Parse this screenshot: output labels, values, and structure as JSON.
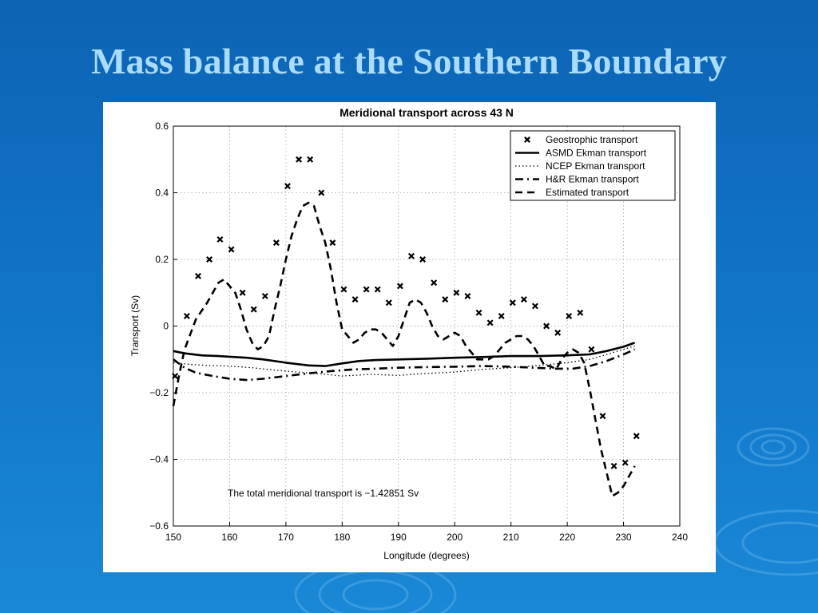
{
  "slide": {
    "title": "Mass balance at the Southern Boundary"
  },
  "colors": {
    "background_top": "#0d63b4",
    "background_bottom": "#1a88d6",
    "title": "#a9dcff",
    "plot": "#000000"
  },
  "chart_data": {
    "type": "line",
    "title": "Meridional transport across 43 N",
    "xlabel": "Longitude (degrees)",
    "ylabel": "Transport (Sv)",
    "xlim": [
      150,
      240
    ],
    "ylim": [
      -0.6,
      0.6
    ],
    "xticks": [
      150,
      160,
      170,
      180,
      190,
      200,
      210,
      220,
      230,
      240
    ],
    "yticks": [
      0.6,
      0.4,
      0.2,
      0,
      -0.2,
      -0.4,
      -0.6
    ],
    "xtick_labels": [
      "150",
      "160",
      "170",
      "180",
      "190",
      "200",
      "210",
      "220",
      "230",
      "240"
    ],
    "ytick_labels": [
      "0.6",
      "0.4",
      "0.2",
      "0",
      "−0.2",
      "−0.4",
      "−0.6"
    ],
    "grid": true,
    "legend_position": "top-right",
    "annotation": "The total meridional transport is −1.42851 Sv",
    "series": [
      {
        "name": "Geostrophic transport",
        "style": "markers-x",
        "x": [
          150.3,
          152.4,
          154.4,
          156.4,
          158.3,
          160.3,
          162.3,
          164.3,
          166.3,
          168.3,
          170.3,
          172.3,
          174.3,
          176.3,
          178.3,
          180.3,
          182.3,
          184.3,
          186.3,
          188.3,
          190.3,
          192.3,
          194.3,
          196.3,
          198.3,
          200.3,
          202.3,
          204.3,
          206.3,
          208.3,
          210.3,
          212.3,
          214.3,
          216.3,
          218.3,
          220.3,
          222.3,
          224.3,
          226.3,
          228.3,
          230.3,
          232.3
        ],
        "y": [
          -0.15,
          0.03,
          0.15,
          0.2,
          0.26,
          0.23,
          0.1,
          0.05,
          0.09,
          0.25,
          0.42,
          0.5,
          0.5,
          0.4,
          0.25,
          0.11,
          0.08,
          0.11,
          0.11,
          0.07,
          0.12,
          0.21,
          0.2,
          0.13,
          0.08,
          0.1,
          0.09,
          0.04,
          0.01,
          0.03,
          0.07,
          0.08,
          0.06,
          0.0,
          -0.02,
          0.03,
          0.04,
          -0.07,
          -0.27,
          -0.42,
          -0.41,
          -0.33
        ]
      },
      {
        "name": "ASMD Ekman transport",
        "style": "solid",
        "x": [
          150,
          152,
          155,
          158,
          160,
          163,
          166,
          170,
          174,
          177,
          180,
          183,
          186,
          190,
          195,
          200,
          205,
          210,
          215,
          220,
          224,
          227,
          230,
          232
        ],
        "y": [
          -0.075,
          -0.082,
          -0.088,
          -0.09,
          -0.092,
          -0.095,
          -0.1,
          -0.11,
          -0.118,
          -0.12,
          -0.112,
          -0.105,
          -0.102,
          -0.1,
          -0.098,
          -0.095,
          -0.093,
          -0.09,
          -0.09,
          -0.088,
          -0.085,
          -0.075,
          -0.062,
          -0.05
        ]
      },
      {
        "name": "NCEP Ekman transport",
        "style": "dotted",
        "x": [
          150,
          153,
          156,
          160,
          164,
          168,
          172,
          176,
          180,
          185,
          190,
          195,
          200,
          205,
          210,
          215,
          220,
          224,
          228,
          232
        ],
        "y": [
          -0.11,
          -0.115,
          -0.118,
          -0.12,
          -0.125,
          -0.132,
          -0.138,
          -0.143,
          -0.15,
          -0.145,
          -0.148,
          -0.142,
          -0.138,
          -0.13,
          -0.125,
          -0.118,
          -0.11,
          -0.1,
          -0.08,
          -0.06
        ]
      },
      {
        "name": "H&R Ekman transport",
        "style": "dash-dot",
        "x": [
          150,
          152,
          154,
          157,
          160,
          163,
          166,
          170,
          174,
          178,
          182,
          186,
          190,
          195,
          200,
          205,
          210,
          214,
          218,
          221,
          224,
          227,
          230,
          232
        ],
        "y": [
          -0.1,
          -0.125,
          -0.14,
          -0.15,
          -0.158,
          -0.162,
          -0.158,
          -0.15,
          -0.142,
          -0.135,
          -0.13,
          -0.128,
          -0.125,
          -0.123,
          -0.122,
          -0.12,
          -0.122,
          -0.125,
          -0.128,
          -0.128,
          -0.12,
          -0.105,
          -0.085,
          -0.07
        ]
      },
      {
        "name": "Estimated transport",
        "style": "dashed",
        "x": [
          150,
          151,
          152,
          154,
          156,
          158,
          159,
          160,
          161,
          162,
          163,
          164,
          165,
          166,
          167,
          168,
          169,
          170,
          171,
          172,
          173,
          174,
          175,
          176,
          177,
          178,
          179,
          180,
          181,
          182,
          183,
          184,
          185,
          186,
          187,
          188,
          189,
          190,
          191,
          192,
          193,
          194,
          195,
          196,
          197,
          198,
          199,
          200,
          201,
          202,
          203,
          204,
          205,
          206,
          207,
          208,
          209,
          210,
          211,
          212,
          213,
          214,
          215,
          216,
          217,
          218,
          219,
          220,
          221,
          222,
          223,
          224,
          225,
          226,
          227,
          228,
          229,
          230,
          231,
          232
        ],
        "y": [
          -0.24,
          -0.15,
          -0.07,
          0.02,
          0.07,
          0.13,
          0.14,
          0.12,
          0.1,
          0.05,
          -0.01,
          -0.05,
          -0.07,
          -0.06,
          -0.03,
          0.05,
          0.12,
          0.2,
          0.27,
          0.32,
          0.36,
          0.37,
          0.36,
          0.3,
          0.25,
          0.17,
          0.07,
          -0.01,
          -0.03,
          -0.05,
          -0.04,
          -0.02,
          -0.01,
          -0.01,
          -0.02,
          -0.04,
          -0.06,
          -0.03,
          0.02,
          0.07,
          0.08,
          0.07,
          0.04,
          0.0,
          -0.03,
          -0.04,
          -0.03,
          -0.02,
          -0.03,
          -0.06,
          -0.08,
          -0.1,
          -0.1,
          -0.1,
          -0.09,
          -0.07,
          -0.05,
          -0.04,
          -0.03,
          -0.03,
          -0.04,
          -0.06,
          -0.09,
          -0.12,
          -0.12,
          -0.13,
          -0.1,
          -0.08,
          -0.07,
          -0.08,
          -0.11,
          -0.19,
          -0.28,
          -0.37,
          -0.44,
          -0.51,
          -0.5,
          -0.48,
          -0.45,
          -0.42
        ]
      }
    ]
  }
}
